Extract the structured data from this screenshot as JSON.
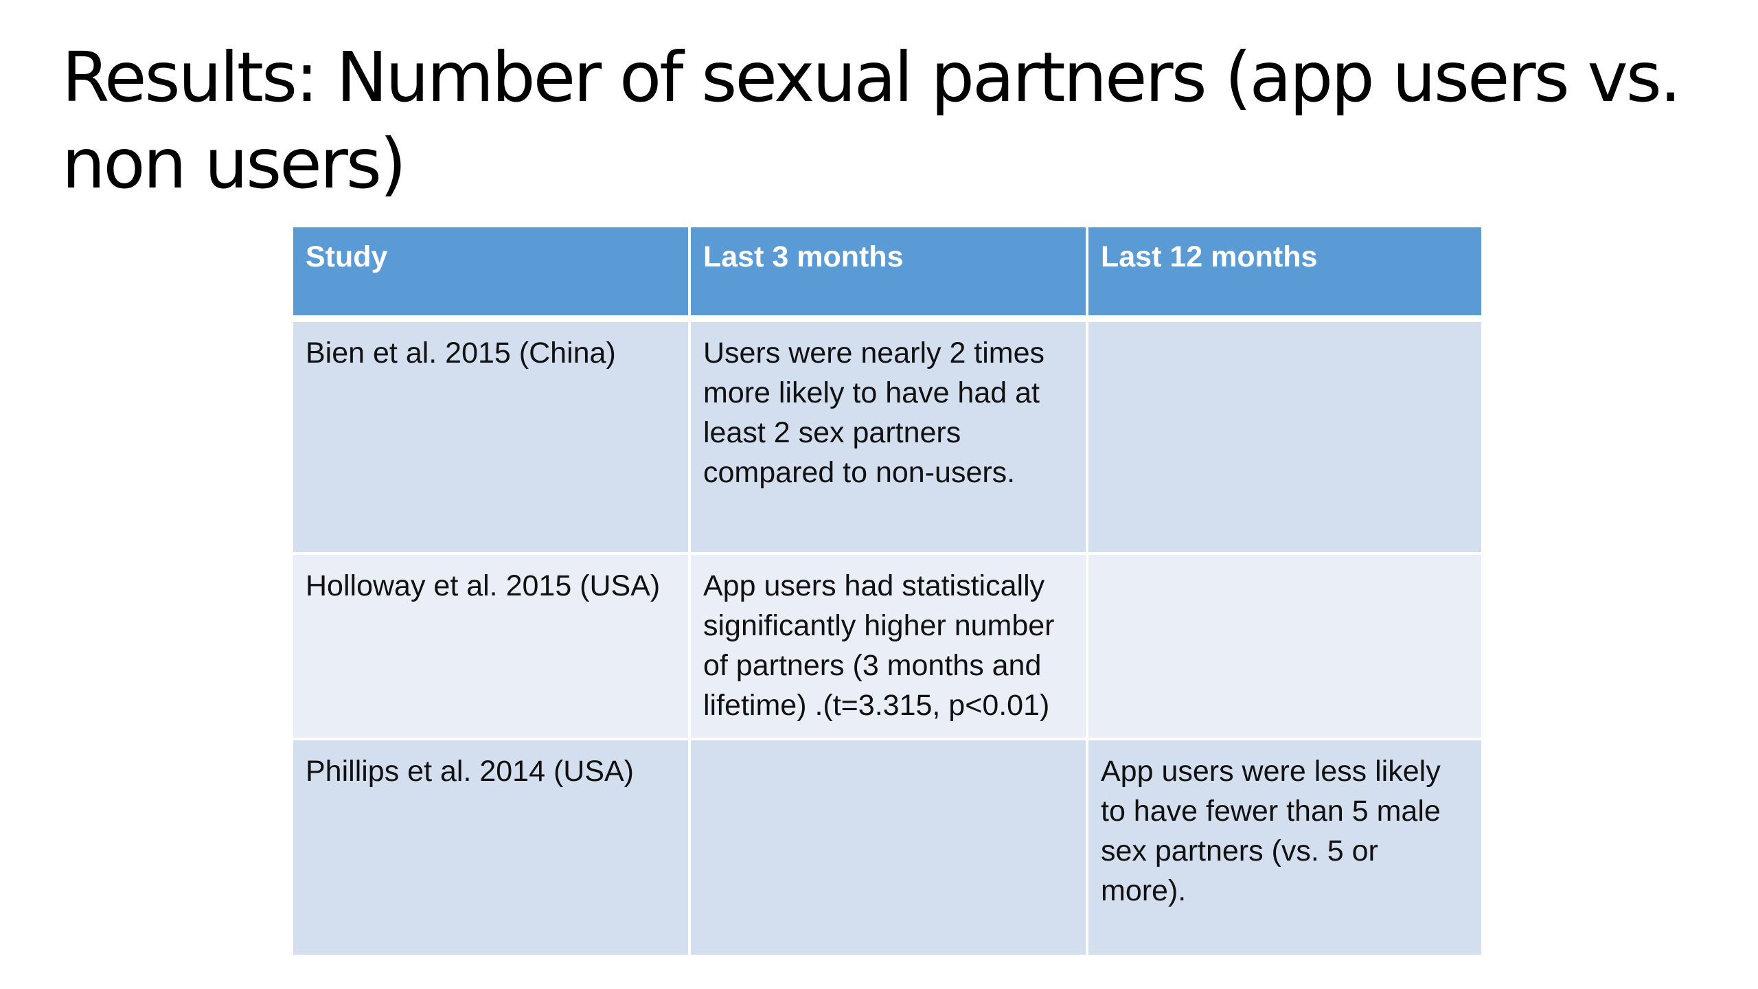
{
  "title": "Results: Number of sexual partners (app users vs. non users)",
  "table": {
    "headers": [
      "Study",
      "Last 3 months",
      "Last 12 months"
    ],
    "rows": [
      {
        "study": "Bien et al. 2015 (China)",
        "last_3_months": "Users were nearly 2 times more likely to have had at least 2 sex partners compared to non-users.",
        "last_12_months": ""
      },
      {
        "study": "Holloway et al. 2015 (USA)",
        "last_3_months": "App users had statistically significantly higher number of partners (3 months and lifetime) .(t=3.315, p<0.01)",
        "last_12_months": ""
      },
      {
        "study": "Phillips et al. 2014 (USA)",
        "last_3_months": "",
        "last_12_months": "App users were less likely to have fewer than 5 male sex partners (vs. 5 or more)."
      }
    ]
  },
  "colors": {
    "header_bg": "#5b9bd5",
    "header_text": "#ffffff",
    "row_band_dark": "#d3dfee",
    "row_band_light": "#eaeff7",
    "title_text": "#000000"
  }
}
